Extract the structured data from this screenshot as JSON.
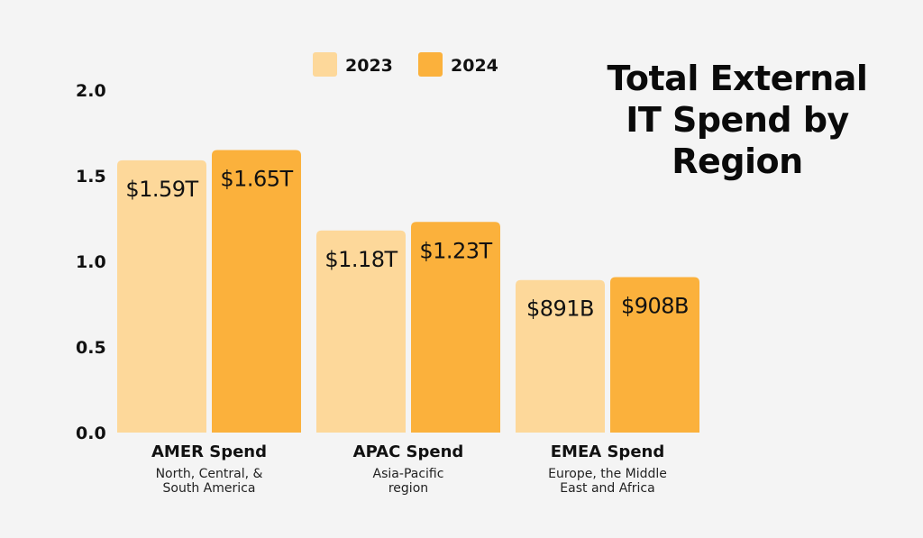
{
  "chart_data": {
    "type": "bar",
    "title_lines": [
      "Total External",
      "IT Spend by",
      "Region"
    ],
    "categories": [
      "AMER Spend",
      "APAC Spend",
      "EMEA Spend"
    ],
    "category_subtitles": [
      [
        "North, Central, &",
        "South America"
      ],
      [
        "Asia-Pacific",
        "region"
      ],
      [
        "Europe, the Middle",
        "East and Africa"
      ]
    ],
    "series": [
      {
        "name": "2023",
        "color": "#fdd89a",
        "values": [
          1.59,
          1.18,
          0.891
        ],
        "labels": [
          "$1.59T",
          "$1.18T",
          "$891B"
        ]
      },
      {
        "name": "2024",
        "color": "#fbb13c",
        "values": [
          1.65,
          1.23,
          0.908
        ],
        "labels": [
          "$1.65T",
          "$1.23T",
          "$908B"
        ]
      }
    ],
    "y_ticks": [
      "0.0",
      "0.5",
      "1.0",
      "1.5",
      "2.0"
    ],
    "ylim": [
      0,
      2.0
    ],
    "grid": false,
    "legend_position": "top"
  }
}
